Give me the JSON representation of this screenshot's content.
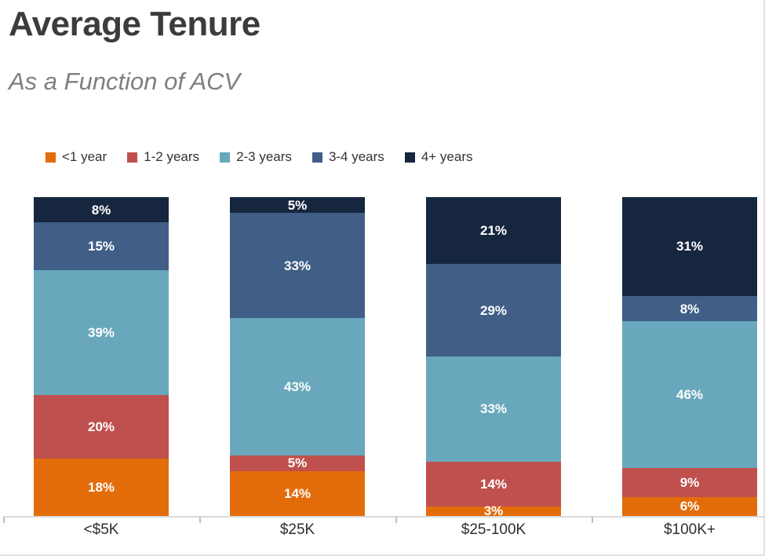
{
  "header": {
    "title": "Average Tenure",
    "subtitle": "As a Function of ACV"
  },
  "colors": {
    "title_text": "#3c3c3c",
    "subtitle_text": "#7f7f7f",
    "axis_line": "#d9d9d9",
    "tick": "#bfbfbf",
    "bar_label_text": "#ffffff",
    "orange": "#e36c0a",
    "red": "#c0504d",
    "teal": "#69a8bc",
    "steel_blue": "#405e86",
    "navy": "#16263f"
  },
  "chart_data": {
    "type": "bar",
    "stacked": true,
    "stacked_total": 100,
    "title": "Average Tenure",
    "subtitle": "As a Function of ACV",
    "xlabel": "",
    "ylabel": "",
    "ylim": [
      0,
      100
    ],
    "grid": false,
    "legend_position": "top",
    "value_suffix": "%",
    "categories": [
      "<$5K",
      "$25K",
      "$25-100K",
      "$100K+"
    ],
    "series": [
      {
        "name": "<1 year",
        "color": "#e36c0a",
        "values": [
          18,
          14,
          3,
          6
        ]
      },
      {
        "name": "1-2 years",
        "color": "#c0504d",
        "values": [
          20,
          5,
          14,
          9
        ]
      },
      {
        "name": "2-3 years",
        "color": "#69a8bc",
        "values": [
          39,
          43,
          33,
          46
        ]
      },
      {
        "name": "3-4 years",
        "color": "#405e86",
        "values": [
          15,
          33,
          29,
          8
        ]
      },
      {
        "name": "4+ years",
        "color": "#16263f",
        "values": [
          8,
          5,
          21,
          31
        ]
      }
    ]
  }
}
